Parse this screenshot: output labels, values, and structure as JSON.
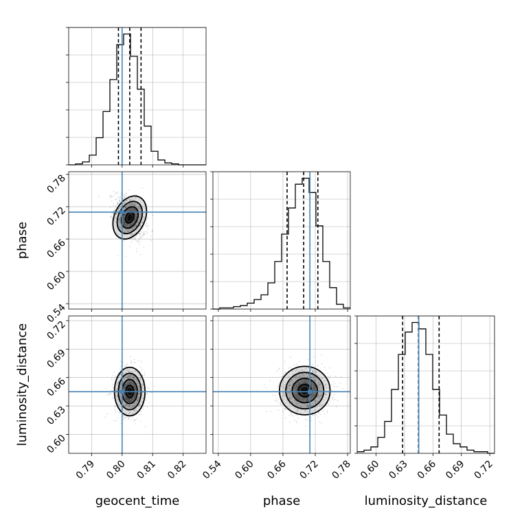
{
  "chart_data": {
    "type": "corner",
    "parameters": [
      "geocent_time",
      "phase",
      "luminosity_distance"
    ],
    "truths": {
      "geocent_time": 0.8,
      "phase": 0.71,
      "luminosity_distance": 0.645
    },
    "ranges": {
      "geocent_time": [
        0.7825,
        0.8275
      ],
      "phase": [
        0.53,
        0.785
      ],
      "luminosity_distance": [
        0.58,
        0.725
      ]
    },
    "ticks": {
      "geocent_time": [
        "0.79",
        "0.80",
        "0.81",
        "0.82"
      ],
      "phase": [
        "0.54",
        "0.60",
        "0.66",
        "0.72",
        "0.78"
      ],
      "luminosity_distance": [
        "0.60",
        "0.63",
        "0.66",
        "0.69",
        "0.72"
      ]
    },
    "quantiles": {
      "geocent_time": [
        0.7988,
        0.8025,
        0.8062
      ],
      "phase": [
        0.6677,
        0.6985,
        0.7248
      ],
      "luminosity_distance": [
        0.628,
        0.6447,
        0.6665
      ]
    },
    "histograms": {
      "geocent_time": {
        "edges": [
          0.7825,
          0.78475,
          0.787,
          0.78925,
          0.7915,
          0.79375,
          0.796,
          0.79825,
          0.8005,
          0.80275,
          0.805,
          0.80725,
          0.8095,
          0.81175,
          0.814,
          0.81625,
          0.8185,
          0.82075,
          0.823,
          0.82525,
          0.8275
        ],
        "counts": [
          0,
          1,
          3,
          10,
          28,
          55,
          88,
          124,
          135,
          112,
          78,
          40,
          14,
          5,
          2,
          1,
          0,
          0,
          0,
          0
        ]
      },
      "phase": {
        "edges": [
          0.53,
          0.54275,
          0.5555,
          0.56825,
          0.581,
          0.59375,
          0.6065,
          0.61925,
          0.632,
          0.64475,
          0.6575,
          0.67025,
          0.683,
          0.69575,
          0.7085,
          0.72125,
          0.734,
          0.74675,
          0.7595,
          0.77225,
          0.785
        ],
        "counts": [
          0,
          1,
          1,
          2,
          3,
          5,
          8,
          12,
          22,
          40,
          63,
          85,
          105,
          110,
          98,
          70,
          40,
          18,
          4,
          1
        ]
      },
      "luminosity_distance": {
        "edges": [
          0.58,
          0.58725,
          0.5945,
          0.60175,
          0.609,
          0.61625,
          0.6235,
          0.63075,
          0.638,
          0.64525,
          0.6525,
          0.65975,
          0.667,
          0.67425,
          0.6815,
          0.68875,
          0.696,
          0.70325,
          0.7105,
          0.71775,
          0.725
        ],
        "counts": [
          1,
          2,
          4,
          10,
          20,
          40,
          62,
          76,
          82,
          78,
          62,
          40,
          24,
          12,
          6,
          4,
          2,
          1,
          1,
          0
        ]
      }
    },
    "pairs": [
      {
        "x": "geocent_time",
        "y": "phase",
        "center": [
          0.8025,
          0.7
        ],
        "sigma": [
          0.0025,
          0.021
        ],
        "rho": -0.35,
        "contour_levels": [
          0.5,
          1.0,
          1.5,
          2.0
        ]
      },
      {
        "x": "geocent_time",
        "y": "luminosity_distance",
        "center": [
          0.8025,
          0.6452
        ],
        "sigma": [
          0.0025,
          0.0128
        ],
        "rho": 0.0,
        "contour_levels": [
          0.5,
          1.0,
          1.5,
          2.0
        ]
      },
      {
        "x": "phase",
        "y": "luminosity_distance",
        "center": [
          0.7005,
          0.6462
        ],
        "sigma": [
          0.0235,
          0.0128
        ],
        "rho": 0.0,
        "contour_levels": [
          0.5,
          1.0,
          1.5,
          2.0
        ]
      }
    ],
    "colors": {
      "truth": "#4682b4",
      "lines": "#000000",
      "grid": "#b0b0b0",
      "points": "#000000"
    },
    "grid": true
  }
}
